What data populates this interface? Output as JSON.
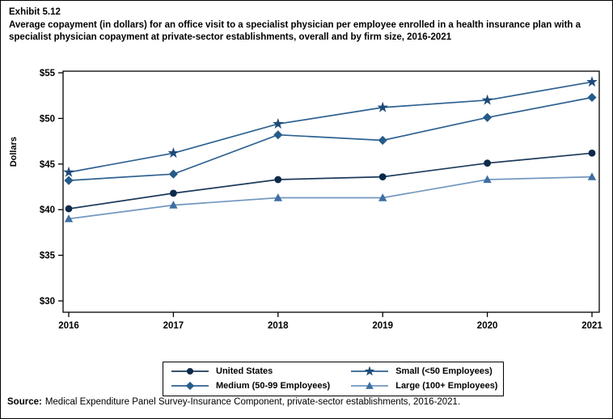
{
  "header": {
    "exhibit": "Exhibit 5.12",
    "title": "Average copayment (in dollars) for an office visit to a specialist physician per employee enrolled in a health insurance plan with a specialist physician copayment at private-sector establishments, overall and by firm size, 2016-2021"
  },
  "chart_data": {
    "type": "line",
    "title": "Average copayment (in dollars) for an office visit to a specialist physician per employee enrolled in a health insurance plan with a specialist physician copayment at private-sector establishments, overall and by firm size, 2016-2021",
    "categories": [
      "2016",
      "2017",
      "2018",
      "2019",
      "2020",
      "2021"
    ],
    "series": [
      {
        "name": "United States",
        "marker": "circle",
        "marker_color": "#0d2a4a",
        "line_color": "#1b3a5a",
        "values": [
          40.1,
          41.8,
          43.3,
          43.6,
          45.1,
          46.2
        ]
      },
      {
        "name": "Small (<50 Employees)",
        "marker": "star",
        "marker_color": "#1d4a77",
        "line_color": "#2e6191",
        "values": [
          44.1,
          46.2,
          49.4,
          51.2,
          52.0,
          54.0
        ]
      },
      {
        "name": "Medium (50-99 Employees)",
        "marker": "diamond",
        "marker_color": "#255b89",
        "line_color": "#2e6191",
        "values": [
          43.2,
          43.9,
          48.2,
          47.6,
          50.1,
          52.3
        ]
      },
      {
        "name": "Large (100+ Employees)",
        "marker": "triangle",
        "marker_color": "#3e6fa2",
        "line_color": "#7297bf",
        "values": [
          39.0,
          40.5,
          41.3,
          41.3,
          43.3,
          43.6
        ]
      }
    ],
    "xlabel": "",
    "ylabel": "Dollars",
    "ylim": [
      30,
      55
    ],
    "y_tick_step": 5,
    "y_tick_labels": [
      "$30",
      "$35",
      "$40",
      "$45",
      "$50",
      "$55"
    ],
    "grid": false,
    "legend_position": "bottom",
    "axis_color": "#000000"
  },
  "source": {
    "label": "Source:",
    "text": "Medical Expenditure Panel Survey-Insurance Component, private-sector establishments, 2016-2021."
  }
}
